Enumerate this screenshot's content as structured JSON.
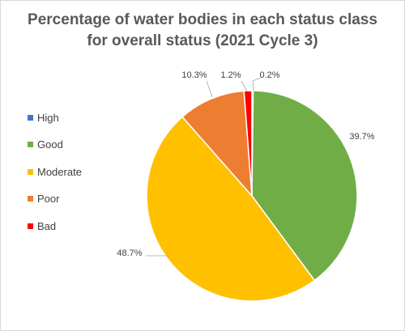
{
  "chart_data": {
    "type": "pie",
    "title_lines": [
      "Percentage of water bodies in each status class",
      "for overall status (2021 Cycle 3)"
    ],
    "categories": [
      "High",
      "Good",
      "Moderate",
      "Poor",
      "Bad"
    ],
    "values": [
      0.2,
      39.7,
      48.7,
      10.3,
      1.2
    ],
    "data_labels": [
      "0.2%",
      "39.7%",
      "48.7%",
      "10.3%",
      "1.2%"
    ],
    "colors": [
      "#4472c4",
      "#70ad47",
      "#ffc000",
      "#ed7d31",
      "#ff0000"
    ],
    "legend_position": "left",
    "start_angle_deg": 0,
    "direction": "clockwise"
  }
}
